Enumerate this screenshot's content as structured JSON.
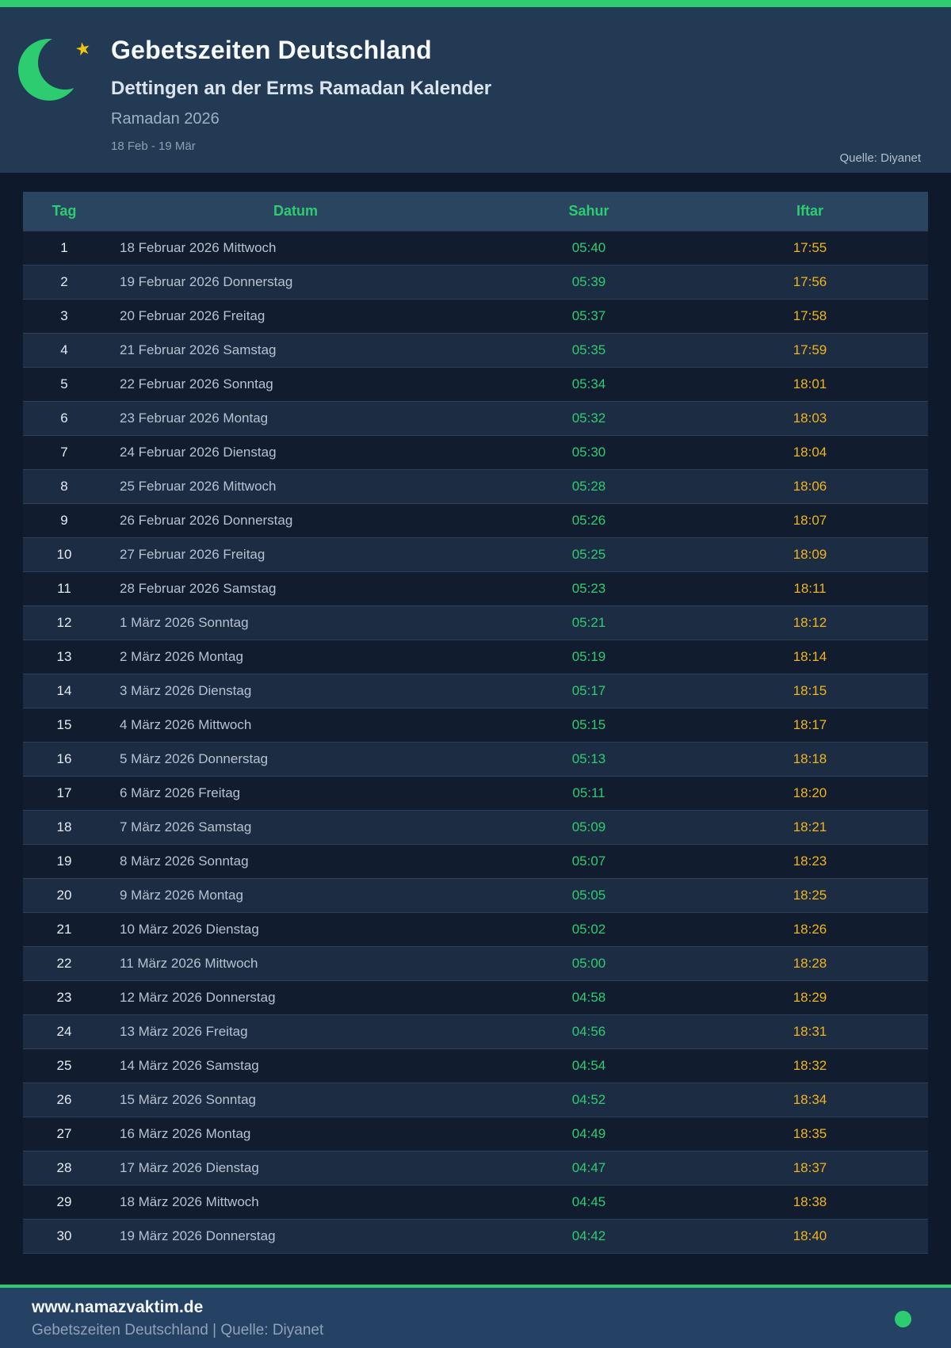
{
  "header": {
    "title": "Gebetszeiten Deutschland",
    "subtitle": "Dettingen an der Erms Ramadan Kalender",
    "period": "Ramadan 2026",
    "date_range": "18 Feb - 19 Mär",
    "source": "Quelle: Diyanet",
    "star_glyph": "★"
  },
  "colors": {
    "accent_green": "#2ecc71",
    "accent_amber": "#f0b41c",
    "header_bg": "#223a54",
    "page_bg": "#0e1a2b",
    "footer_bg": "#254264"
  },
  "icons": {
    "moon": "crescent-moon-icon",
    "star": "star-icon",
    "status_dot": "status-dot"
  },
  "table": {
    "columns": {
      "tag": "Tag",
      "datum": "Datum",
      "sahur": "Sahur",
      "iftar": "Iftar"
    },
    "rows": [
      {
        "tag": "1",
        "datum": "18 Februar 2026 Mittwoch",
        "sahur": "05:40",
        "iftar": "17:55"
      },
      {
        "tag": "2",
        "datum": "19 Februar 2026 Donnerstag",
        "sahur": "05:39",
        "iftar": "17:56"
      },
      {
        "tag": "3",
        "datum": "20 Februar 2026 Freitag",
        "sahur": "05:37",
        "iftar": "17:58"
      },
      {
        "tag": "4",
        "datum": "21 Februar 2026 Samstag",
        "sahur": "05:35",
        "iftar": "17:59"
      },
      {
        "tag": "5",
        "datum": "22 Februar 2026 Sonntag",
        "sahur": "05:34",
        "iftar": "18:01"
      },
      {
        "tag": "6",
        "datum": "23 Februar 2026 Montag",
        "sahur": "05:32",
        "iftar": "18:03"
      },
      {
        "tag": "7",
        "datum": "24 Februar 2026 Dienstag",
        "sahur": "05:30",
        "iftar": "18:04"
      },
      {
        "tag": "8",
        "datum": "25 Februar 2026 Mittwoch",
        "sahur": "05:28",
        "iftar": "18:06"
      },
      {
        "tag": "9",
        "datum": "26 Februar 2026 Donnerstag",
        "sahur": "05:26",
        "iftar": "18:07"
      },
      {
        "tag": "10",
        "datum": "27 Februar 2026 Freitag",
        "sahur": "05:25",
        "iftar": "18:09"
      },
      {
        "tag": "11",
        "datum": "28 Februar 2026 Samstag",
        "sahur": "05:23",
        "iftar": "18:11"
      },
      {
        "tag": "12",
        "datum": "1 März 2026 Sonntag",
        "sahur": "05:21",
        "iftar": "18:12"
      },
      {
        "tag": "13",
        "datum": "2 März 2026 Montag",
        "sahur": "05:19",
        "iftar": "18:14"
      },
      {
        "tag": "14",
        "datum": "3 März 2026 Dienstag",
        "sahur": "05:17",
        "iftar": "18:15"
      },
      {
        "tag": "15",
        "datum": "4 März 2026 Mittwoch",
        "sahur": "05:15",
        "iftar": "18:17"
      },
      {
        "tag": "16",
        "datum": "5 März 2026 Donnerstag",
        "sahur": "05:13",
        "iftar": "18:18"
      },
      {
        "tag": "17",
        "datum": "6 März 2026 Freitag",
        "sahur": "05:11",
        "iftar": "18:20"
      },
      {
        "tag": "18",
        "datum": "7 März 2026 Samstag",
        "sahur": "05:09",
        "iftar": "18:21"
      },
      {
        "tag": "19",
        "datum": "8 März 2026 Sonntag",
        "sahur": "05:07",
        "iftar": "18:23"
      },
      {
        "tag": "20",
        "datum": "9 März 2026 Montag",
        "sahur": "05:05",
        "iftar": "18:25"
      },
      {
        "tag": "21",
        "datum": "10 März 2026 Dienstag",
        "sahur": "05:02",
        "iftar": "18:26"
      },
      {
        "tag": "22",
        "datum": "11 März 2026 Mittwoch",
        "sahur": "05:00",
        "iftar": "18:28"
      },
      {
        "tag": "23",
        "datum": "12 März 2026 Donnerstag",
        "sahur": "04:58",
        "iftar": "18:29"
      },
      {
        "tag": "24",
        "datum": "13 März 2026 Freitag",
        "sahur": "04:56",
        "iftar": "18:31"
      },
      {
        "tag": "25",
        "datum": "14 März 2026 Samstag",
        "sahur": "04:54",
        "iftar": "18:32"
      },
      {
        "tag": "26",
        "datum": "15 März 2026 Sonntag",
        "sahur": "04:52",
        "iftar": "18:34"
      },
      {
        "tag": "27",
        "datum": "16 März 2026 Montag",
        "sahur": "04:49",
        "iftar": "18:35"
      },
      {
        "tag": "28",
        "datum": "17 März 2026 Dienstag",
        "sahur": "04:47",
        "iftar": "18:37"
      },
      {
        "tag": "29",
        "datum": "18 März 2026 Mittwoch",
        "sahur": "04:45",
        "iftar": "18:38"
      },
      {
        "tag": "30",
        "datum": "19 März 2026 Donnerstag",
        "sahur": "04:42",
        "iftar": "18:40"
      }
    ]
  },
  "footer": {
    "website": "www.namazvaktim.de",
    "tagline": "Gebetszeiten Deutschland | Quelle: Diyanet"
  }
}
